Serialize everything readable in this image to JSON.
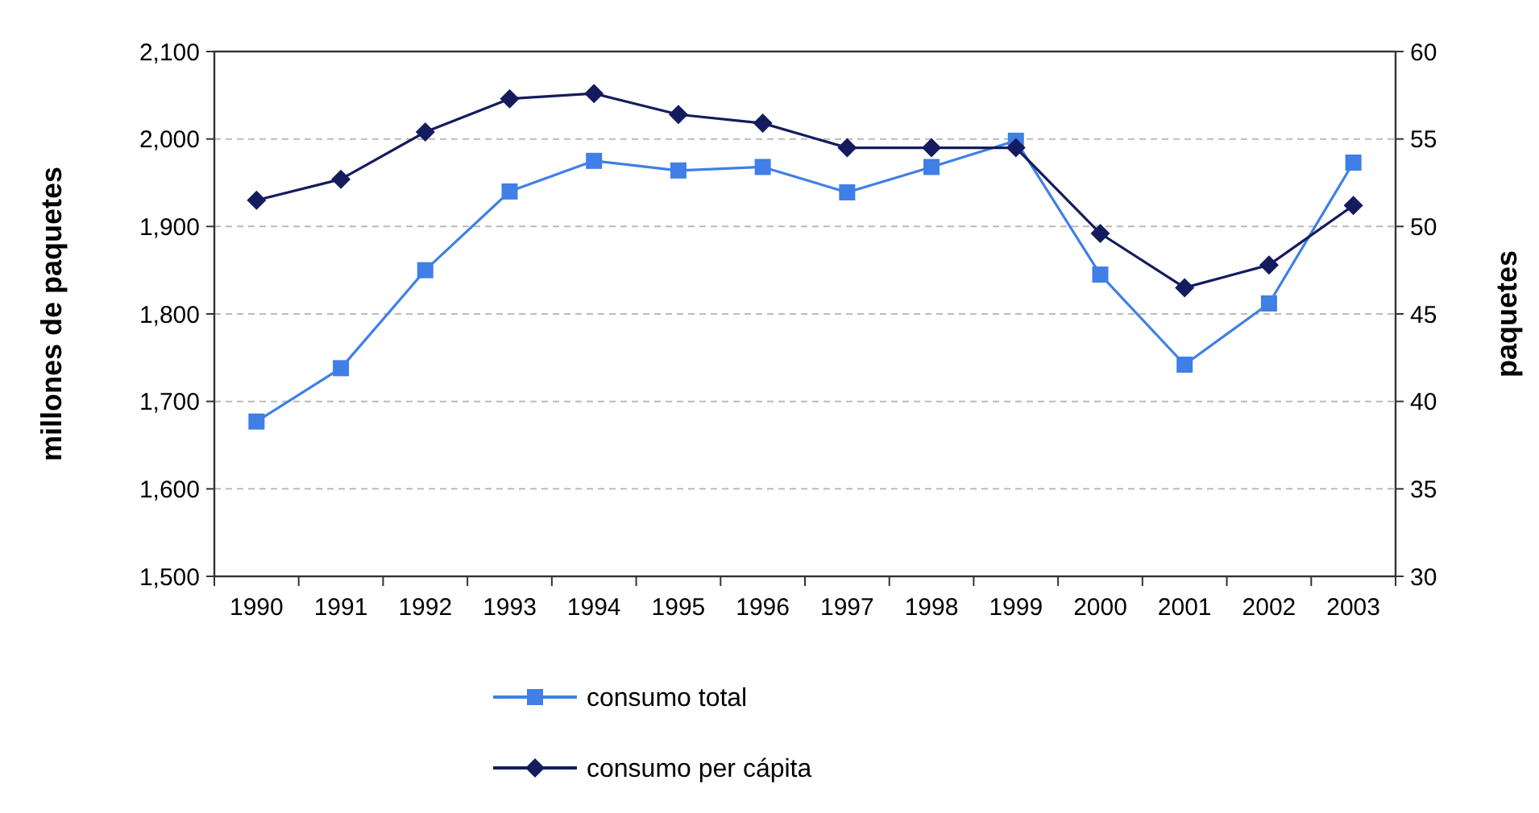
{
  "chart_data": {
    "type": "line",
    "categories": [
      "1990",
      "1991",
      "1992",
      "1993",
      "1994",
      "1995",
      "1996",
      "1997",
      "1998",
      "1999",
      "2000",
      "2001",
      "2002",
      "2003"
    ],
    "ylabel": "millones de paquetes",
    "y2label": "paquetes",
    "ylim": [
      1500,
      2100
    ],
    "yticks": [
      {
        "value": 1500,
        "label": "1,500"
      },
      {
        "value": 1600,
        "label": "1,600"
      },
      {
        "value": 1700,
        "label": "1,700"
      },
      {
        "value": 1800,
        "label": "1,800"
      },
      {
        "value": 1900,
        "label": "1,900"
      },
      {
        "value": 2000,
        "label": "2,000"
      },
      {
        "value": 2100,
        "label": "2,100"
      }
    ],
    "y2lim": [
      30,
      60
    ],
    "y2ticks": [
      30,
      35,
      40,
      45,
      50,
      55,
      60
    ],
    "grid": "y",
    "legend": "bottom",
    "series": [
      {
        "name": "consumo total",
        "color": "#3f7fe6",
        "marker": "square",
        "values": [
          1677,
          1738,
          1850,
          1940,
          1975,
          1964,
          1968,
          1939,
          1968,
          1998,
          1845,
          1742,
          1812,
          1973
        ]
      },
      {
        "name": "consumo per cápita",
        "color": "#141c5e",
        "marker": "diamond",
        "axis": "y2",
        "values": [
          51.5,
          52.7,
          55.4,
          57.3,
          57.6,
          56.4,
          55.9,
          54.5,
          54.5,
          54.5,
          49.6,
          46.5,
          47.8,
          51.2
        ]
      }
    ]
  }
}
